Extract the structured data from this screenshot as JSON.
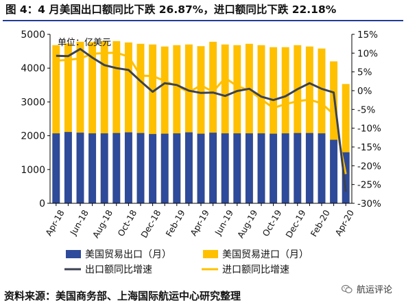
{
  "title": "图 4：4 月美国出口额同比下跌 26.87%，进口额同比下跌 22.18%",
  "source": "资料来源：美国商务部、上海国际航运中心研究整理",
  "watermark": "航运评论",
  "colors": {
    "exports_bar": "#2e4a9a",
    "imports_bar": "#ffc000",
    "exports_line": "#3b4252",
    "imports_line": "#ffc000",
    "axis": "#000000"
  },
  "chart_data": {
    "type": "bar",
    "unit_label": "单位：亿美元",
    "categories": [
      "Apr-18",
      "May-18",
      "Jun-18",
      "Jul-18",
      "Aug-18",
      "Sep-18",
      "Oct-18",
      "Nov-18",
      "Dec-18",
      "Jan-19",
      "Feb-19",
      "Mar-19",
      "Apr-19",
      "May-19",
      "Jun-19",
      "Jul-19",
      "Aug-19",
      "Sep-19",
      "Oct-19",
      "Nov-19",
      "Dec-19",
      "Jan-20",
      "Feb-20",
      "Mar-20",
      "Apr-20"
    ],
    "x_tick_labels": [
      "Apr-18",
      "Jun-18",
      "Aug-18",
      "Oct-18",
      "Dec-18",
      "Feb-19",
      "Apr-19",
      "Jun-19",
      "Aug-19",
      "Oct-19",
      "Dec-19",
      "Feb-20",
      "Apr-20"
    ],
    "y_left": {
      "min": 0,
      "max": 5000,
      "ticks": [
        0,
        1000,
        2000,
        3000,
        4000,
        5000
      ]
    },
    "y_right": {
      "min": -30,
      "max": 15,
      "ticks": [
        "-30%",
        "-25%",
        "-20%",
        "-15%",
        "-10%",
        "-5%",
        "0%",
        "5%",
        "10%",
        "15%"
      ],
      "tick_values": [
        -30,
        -25,
        -20,
        -15,
        -10,
        -5,
        0,
        5,
        10,
        15
      ]
    },
    "series": [
      {
        "name": "美国贸易出口（月）",
        "kind": "bar",
        "axis": "left",
        "values": [
          2070,
          2110,
          2090,
          2070,
          2070,
          2080,
          2100,
          2080,
          2050,
          2060,
          2070,
          2100,
          2060,
          2090,
          2070,
          2070,
          2070,
          2070,
          2060,
          2070,
          2080,
          2080,
          2070,
          1880,
          1510
        ]
      },
      {
        "name": "美国贸易进口（月）",
        "kind": "bar",
        "axis": "left",
        "values": [
          4680,
          4730,
          4780,
          4770,
          4800,
          4800,
          4760,
          4720,
          4700,
          4640,
          4680,
          4700,
          4650,
          4780,
          4700,
          4680,
          4720,
          4680,
          4620,
          4620,
          4680,
          4640,
          4580,
          4200,
          3530
        ]
      },
      {
        "name": "出口额同比增速",
        "kind": "line",
        "axis": "right",
        "values": [
          9.3,
          9.2,
          11.1,
          8.8,
          6.8,
          6.0,
          5.5,
          2.5,
          -0.3,
          2.0,
          1.5,
          0.0,
          -0.6,
          -0.5,
          -1.4,
          -0.1,
          0.5,
          -1.6,
          -2.5,
          -1.5,
          0.4,
          2.0,
          0.5,
          -0.5,
          -26.9
        ]
      },
      {
        "name": "进口额同比增速",
        "kind": "line",
        "axis": "right",
        "values": [
          8.0,
          8.2,
          8.6,
          9.8,
          10.0,
          10.1,
          9.1,
          4.0,
          3.9,
          2.6,
          1.2,
          -0.4,
          1.4,
          -0.3,
          3.4,
          1.2,
          0.1,
          -2.3,
          -4.6,
          -3.6,
          -2.8,
          -2.4,
          -3.4,
          -6.3,
          -22.2
        ]
      }
    ],
    "legend_position": "bottom",
    "grid": false
  }
}
